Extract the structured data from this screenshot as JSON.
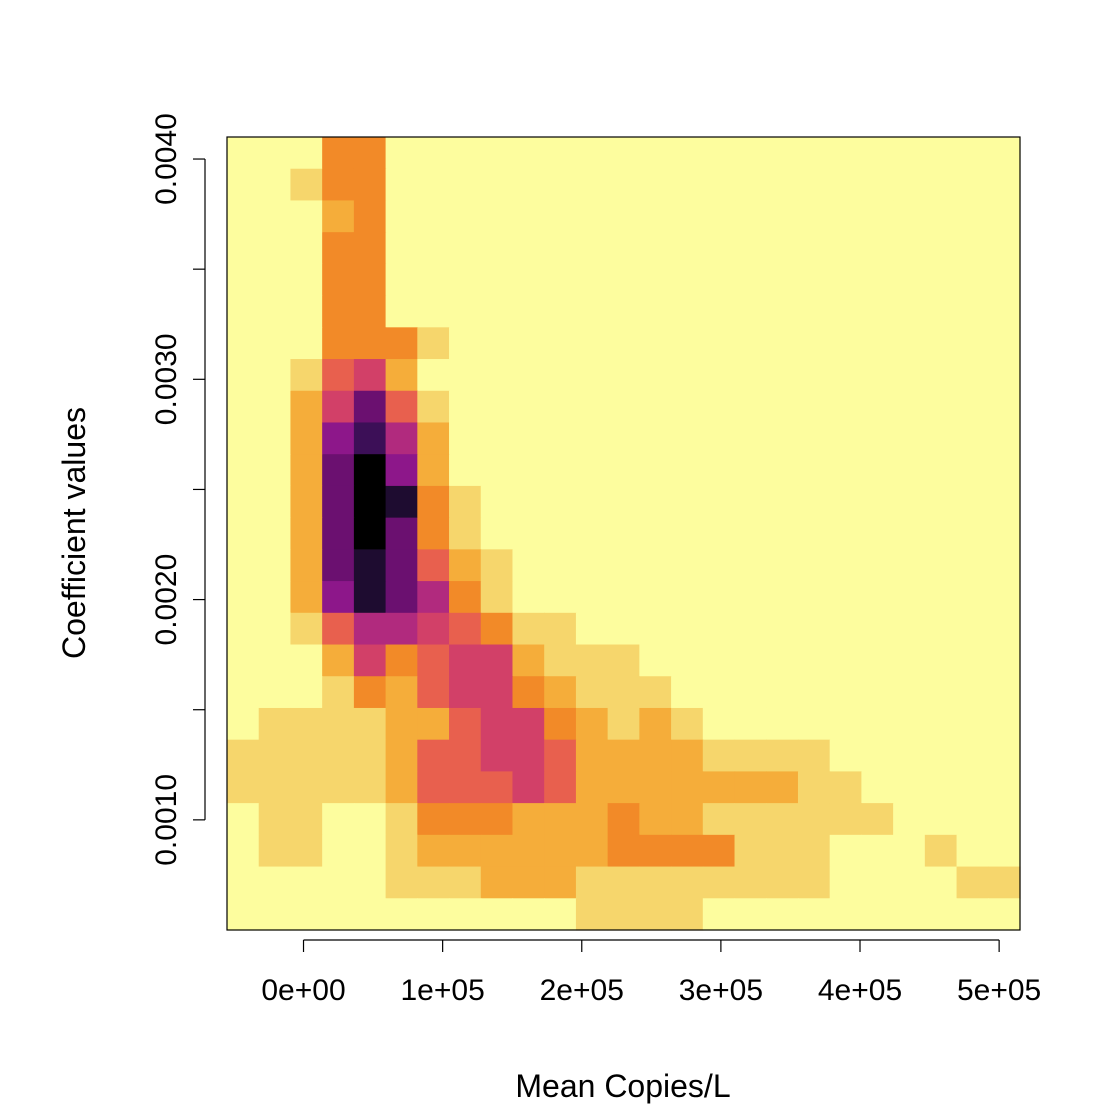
{
  "chart_data": {
    "type": "heatmap",
    "title": "",
    "xlabel": "Mean Copies/L",
    "ylabel": "Coefficient values",
    "x_ticks": [
      {
        "value": 0,
        "label": "0e+00"
      },
      {
        "value": 100000,
        "label": "1e+05"
      },
      {
        "value": 200000,
        "label": "2e+05"
      },
      {
        "value": 300000,
        "label": "3e+05"
      },
      {
        "value": 400000,
        "label": "4e+05"
      },
      {
        "value": 500000,
        "label": "5e+05"
      }
    ],
    "y_ticks": [
      {
        "value": 0.001,
        "label": "0.0010"
      },
      {
        "value": 0.0015,
        "label": ""
      },
      {
        "value": 0.002,
        "label": "0.0020"
      },
      {
        "value": 0.0025,
        "label": ""
      },
      {
        "value": 0.003,
        "label": "0.0030"
      },
      {
        "value": 0.0035,
        "label": ""
      },
      {
        "value": 0.004,
        "label": "0.0040"
      }
    ],
    "xlim": [
      -55000,
      515000
    ],
    "ylim": [
      0.0005,
      0.0041
    ],
    "grid": false,
    "legend": "none",
    "x_bins": {
      "start": -55000,
      "step": 22800,
      "count": 25
    },
    "y_bins": {
      "start": 0.0005,
      "step": 0.000144,
      "count": 25
    },
    "palette": [
      "#fdfd9e",
      "#f6d66c",
      "#f5ad3a",
      "#f28a28",
      "#e8604e",
      "#d24068",
      "#b12a7e",
      "#8d178a",
      "#6b1070",
      "#3c0f57",
      "#1e0c30",
      "#000000"
    ],
    "density_rows_top_to_bottom": [
      "0003300000000000000000000",
      "0013300000000000000000000",
      "0002300000000000000000000",
      "0003300000000000000000000",
      "0003300000000000000000000",
      "0003300000000000000000000",
      "0003331000000000000000000",
      "0014520000000000000000000",
      "0025841000000000000000000",
      "0027962000000000000000000",
      "0028B72000000000000000000",
      "0028BA3100000000000000000",
      "0028B83100000000000000000",
      "0028A84210000000000000000",
      "0027A86310000000000000000",
      "0014665431100000000000000",
      "0002534552111000000000000",
      "0001324553211100000000000",
      "0111122455321210000000000",
      "1111124455422221111000000",
      "1111124445422222221100000",
      "0110013332223221111110000",
      "0110012222223333111000100",
      "0000011122211111111000011",
      "0000000000011110000000000"
    ]
  }
}
